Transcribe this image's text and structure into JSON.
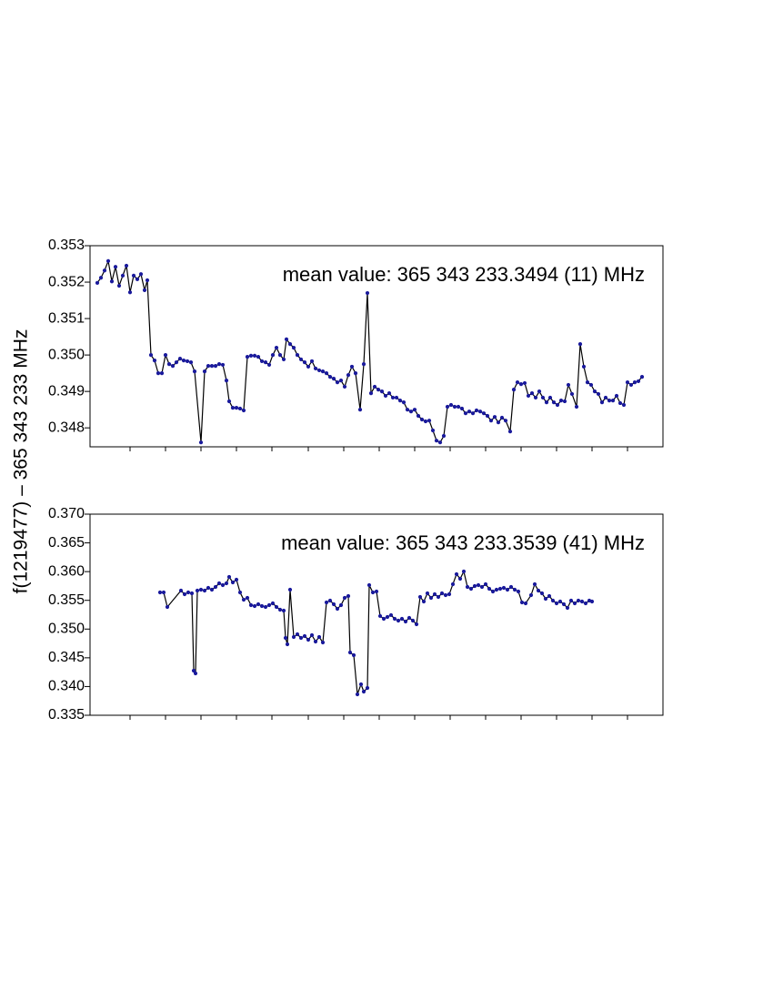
{
  "ylabel": "f(1219477) – 365 343 233 MHz",
  "chart_data": [
    {
      "type": "line",
      "annotation": "mean value: 365 343 233.3494 (11) MHz",
      "line_color": "#000000",
      "marker_color": "#1a1a9c",
      "xlim": [
        0,
        630
      ],
      "xticks": [
        44,
        83,
        122,
        161,
        200,
        240,
        279,
        318,
        357,
        396,
        435,
        474,
        513,
        552,
        591
      ],
      "ylim": [
        0.34748,
        0.353
      ],
      "yticks": [
        0.348,
        0.349,
        {
          "value": 0.35,
          "label": "0.350"
        },
        0.351,
        0.352,
        0.353
      ],
      "x": [
        8,
        12,
        16,
        20,
        24,
        28,
        32,
        36,
        40,
        44,
        48,
        52,
        56,
        60,
        63,
        67,
        71,
        75,
        79,
        83,
        87,
        91,
        95,
        99,
        103,
        107,
        111,
        115,
        122,
        126,
        130,
        134,
        138,
        142,
        146,
        150,
        153,
        157,
        161,
        165,
        169,
        173,
        177,
        181,
        185,
        189,
        193,
        197,
        201,
        205,
        209,
        213,
        216,
        220,
        224,
        228,
        232,
        236,
        240,
        244,
        248,
        252,
        256,
        260,
        264,
        268,
        272,
        276,
        280,
        284,
        288,
        292,
        297,
        301,
        305,
        309,
        313,
        317,
        321,
        325,
        329,
        333,
        337,
        341,
        345,
        349,
        353,
        357,
        361,
        365,
        369,
        373,
        377,
        381,
        385,
        389,
        393,
        397,
        401,
        405,
        409,
        413,
        417,
        421,
        425,
        429,
        433,
        437,
        441,
        445,
        449,
        453,
        457,
        462,
        466,
        470,
        474,
        478,
        482,
        486,
        490,
        494,
        498,
        502,
        506,
        510,
        514,
        518,
        522,
        526,
        530,
        535,
        539,
        543,
        547,
        551,
        555,
        559,
        563,
        567,
        571,
        575,
        579,
        583,
        587,
        591,
        595,
        599,
        603,
        607
      ],
      "values": [
        0.35198,
        0.35212,
        0.35232,
        0.35258,
        0.35202,
        0.35242,
        0.3519,
        0.35218,
        0.35245,
        0.35172,
        0.35218,
        0.35208,
        0.35222,
        0.35178,
        0.35205,
        0.35,
        0.34985,
        0.3495,
        0.3495,
        0.35,
        0.34975,
        0.3497,
        0.3498,
        0.3499,
        0.34985,
        0.34983,
        0.3498,
        0.34955,
        0.3476,
        0.34955,
        0.3497,
        0.3497,
        0.3497,
        0.34975,
        0.34973,
        0.3493,
        0.34873,
        0.34855,
        0.34855,
        0.34853,
        0.34848,
        0.34995,
        0.34998,
        0.34998,
        0.34995,
        0.34983,
        0.3498,
        0.34973,
        0.35,
        0.3502,
        0.35,
        0.34988,
        0.35043,
        0.3503,
        0.3502,
        0.35,
        0.34988,
        0.3498,
        0.34968,
        0.34983,
        0.34963,
        0.34958,
        0.34955,
        0.3495,
        0.3494,
        0.34935,
        0.34925,
        0.3493,
        0.34913,
        0.34945,
        0.34968,
        0.3495,
        0.3485,
        0.34975,
        0.3517,
        0.34895,
        0.34913,
        0.34905,
        0.349,
        0.34888,
        0.34895,
        0.34883,
        0.34883,
        0.34875,
        0.3487,
        0.3485,
        0.34845,
        0.3485,
        0.34833,
        0.34823,
        0.34818,
        0.3482,
        0.34793,
        0.34765,
        0.3476,
        0.34778,
        0.34858,
        0.34863,
        0.34858,
        0.34858,
        0.34853,
        0.3484,
        0.34845,
        0.3484,
        0.34848,
        0.34845,
        0.3484,
        0.34833,
        0.3482,
        0.3483,
        0.34815,
        0.34828,
        0.3482,
        0.3479,
        0.34905,
        0.34925,
        0.3492,
        0.34923,
        0.34888,
        0.34895,
        0.34883,
        0.349,
        0.34883,
        0.3487,
        0.34883,
        0.3487,
        0.34863,
        0.34875,
        0.34873,
        0.34918,
        0.34893,
        0.34858,
        0.3503,
        0.34968,
        0.34925,
        0.34918,
        0.349,
        0.34893,
        0.3487,
        0.34883,
        0.34875,
        0.34875,
        0.34888,
        0.34868,
        0.34863,
        0.34925,
        0.34918,
        0.34925,
        0.34928,
        0.3494
      ]
    },
    {
      "type": "line",
      "annotation": "mean value: 365 343 233.3539 (41) MHz",
      "line_color": "#000000",
      "marker_color": "#1a1a9c",
      "xlim": [
        0,
        630
      ],
      "xticks": [
        44,
        83,
        122,
        161,
        200,
        240,
        279,
        318,
        357,
        396,
        435,
        474,
        513,
        552,
        591
      ],
      "ylim": [
        0.335,
        0.37
      ],
      "yticks": [
        0.335,
        {
          "value": 0.34,
          "label": "0.340"
        },
        0.345,
        {
          "value": 0.35,
          "label": "0.350"
        },
        0.355,
        {
          "value": 0.36,
          "label": "0.360"
        },
        0.365,
        {
          "value": 0.37,
          "label": "0.370"
        }
      ],
      "x": [
        77,
        81,
        85,
        100,
        104,
        108,
        112,
        114,
        116,
        118,
        122,
        126,
        130,
        134,
        138,
        142,
        146,
        150,
        153,
        157,
        161,
        165,
        169,
        173,
        177,
        181,
        185,
        189,
        193,
        197,
        201,
        205,
        209,
        213,
        215,
        217,
        220,
        224,
        228,
        232,
        236,
        240,
        244,
        248,
        252,
        256,
        260,
        264,
        268,
        272,
        276,
        280,
        284,
        286,
        290,
        294,
        298,
        301,
        305,
        307,
        311,
        315,
        319,
        323,
        327,
        331,
        335,
        339,
        343,
        347,
        351,
        355,
        359,
        363,
        367,
        371,
        375,
        379,
        383,
        387,
        391,
        395,
        399,
        403,
        407,
        411,
        415,
        419,
        423,
        427,
        431,
        435,
        439,
        443,
        447,
        451,
        455,
        459,
        463,
        467,
        471,
        475,
        479,
        485,
        489,
        493,
        497,
        501,
        505,
        509,
        513,
        517,
        521,
        525,
        529,
        533,
        537,
        541,
        545,
        549,
        552
      ],
      "values": [
        0.35638,
        0.35638,
        0.35385,
        0.3567,
        0.35606,
        0.35638,
        0.35622,
        0.34276,
        0.34229,
        0.3567,
        0.35686,
        0.3567,
        0.35717,
        0.35686,
        0.35733,
        0.35796,
        0.35765,
        0.35796,
        0.35907,
        0.35812,
        0.3586,
        0.35638,
        0.35511,
        0.35543,
        0.35416,
        0.354,
        0.35432,
        0.354,
        0.35385,
        0.35416,
        0.35448,
        0.35385,
        0.35337,
        0.35321,
        0.34846,
        0.34735,
        0.35686,
        0.34862,
        0.34909,
        0.34846,
        0.34878,
        0.34815,
        0.34894,
        0.34783,
        0.34862,
        0.34767,
        0.35464,
        0.35495,
        0.35432,
        0.35353,
        0.35416,
        0.35543,
        0.35575,
        0.34593,
        0.34545,
        0.33864,
        0.34039,
        0.33912,
        0.33975,
        0.35765,
        0.35638,
        0.35654,
        0.35227,
        0.35179,
        0.35211,
        0.35243,
        0.35179,
        0.35147,
        0.35179,
        0.35131,
        0.35195,
        0.35147,
        0.35084,
        0.35559,
        0.3548,
        0.35622,
        0.35543,
        0.35606,
        0.35559,
        0.35622,
        0.3559,
        0.35606,
        0.35781,
        0.35955,
        0.35876,
        0.36002,
        0.35733,
        0.35701,
        0.35749,
        0.35765,
        0.35733,
        0.35781,
        0.35701,
        0.35654,
        0.35686,
        0.35701,
        0.35717,
        0.35686,
        0.35733,
        0.35686,
        0.35654,
        0.35464,
        0.35448,
        0.3559,
        0.35781,
        0.3567,
        0.35622,
        0.35527,
        0.35575,
        0.35495,
        0.35448,
        0.3548,
        0.35432,
        0.35369,
        0.35495,
        0.35448,
        0.35495,
        0.3548,
        0.35448,
        0.35495,
        0.3548
      ]
    }
  ]
}
